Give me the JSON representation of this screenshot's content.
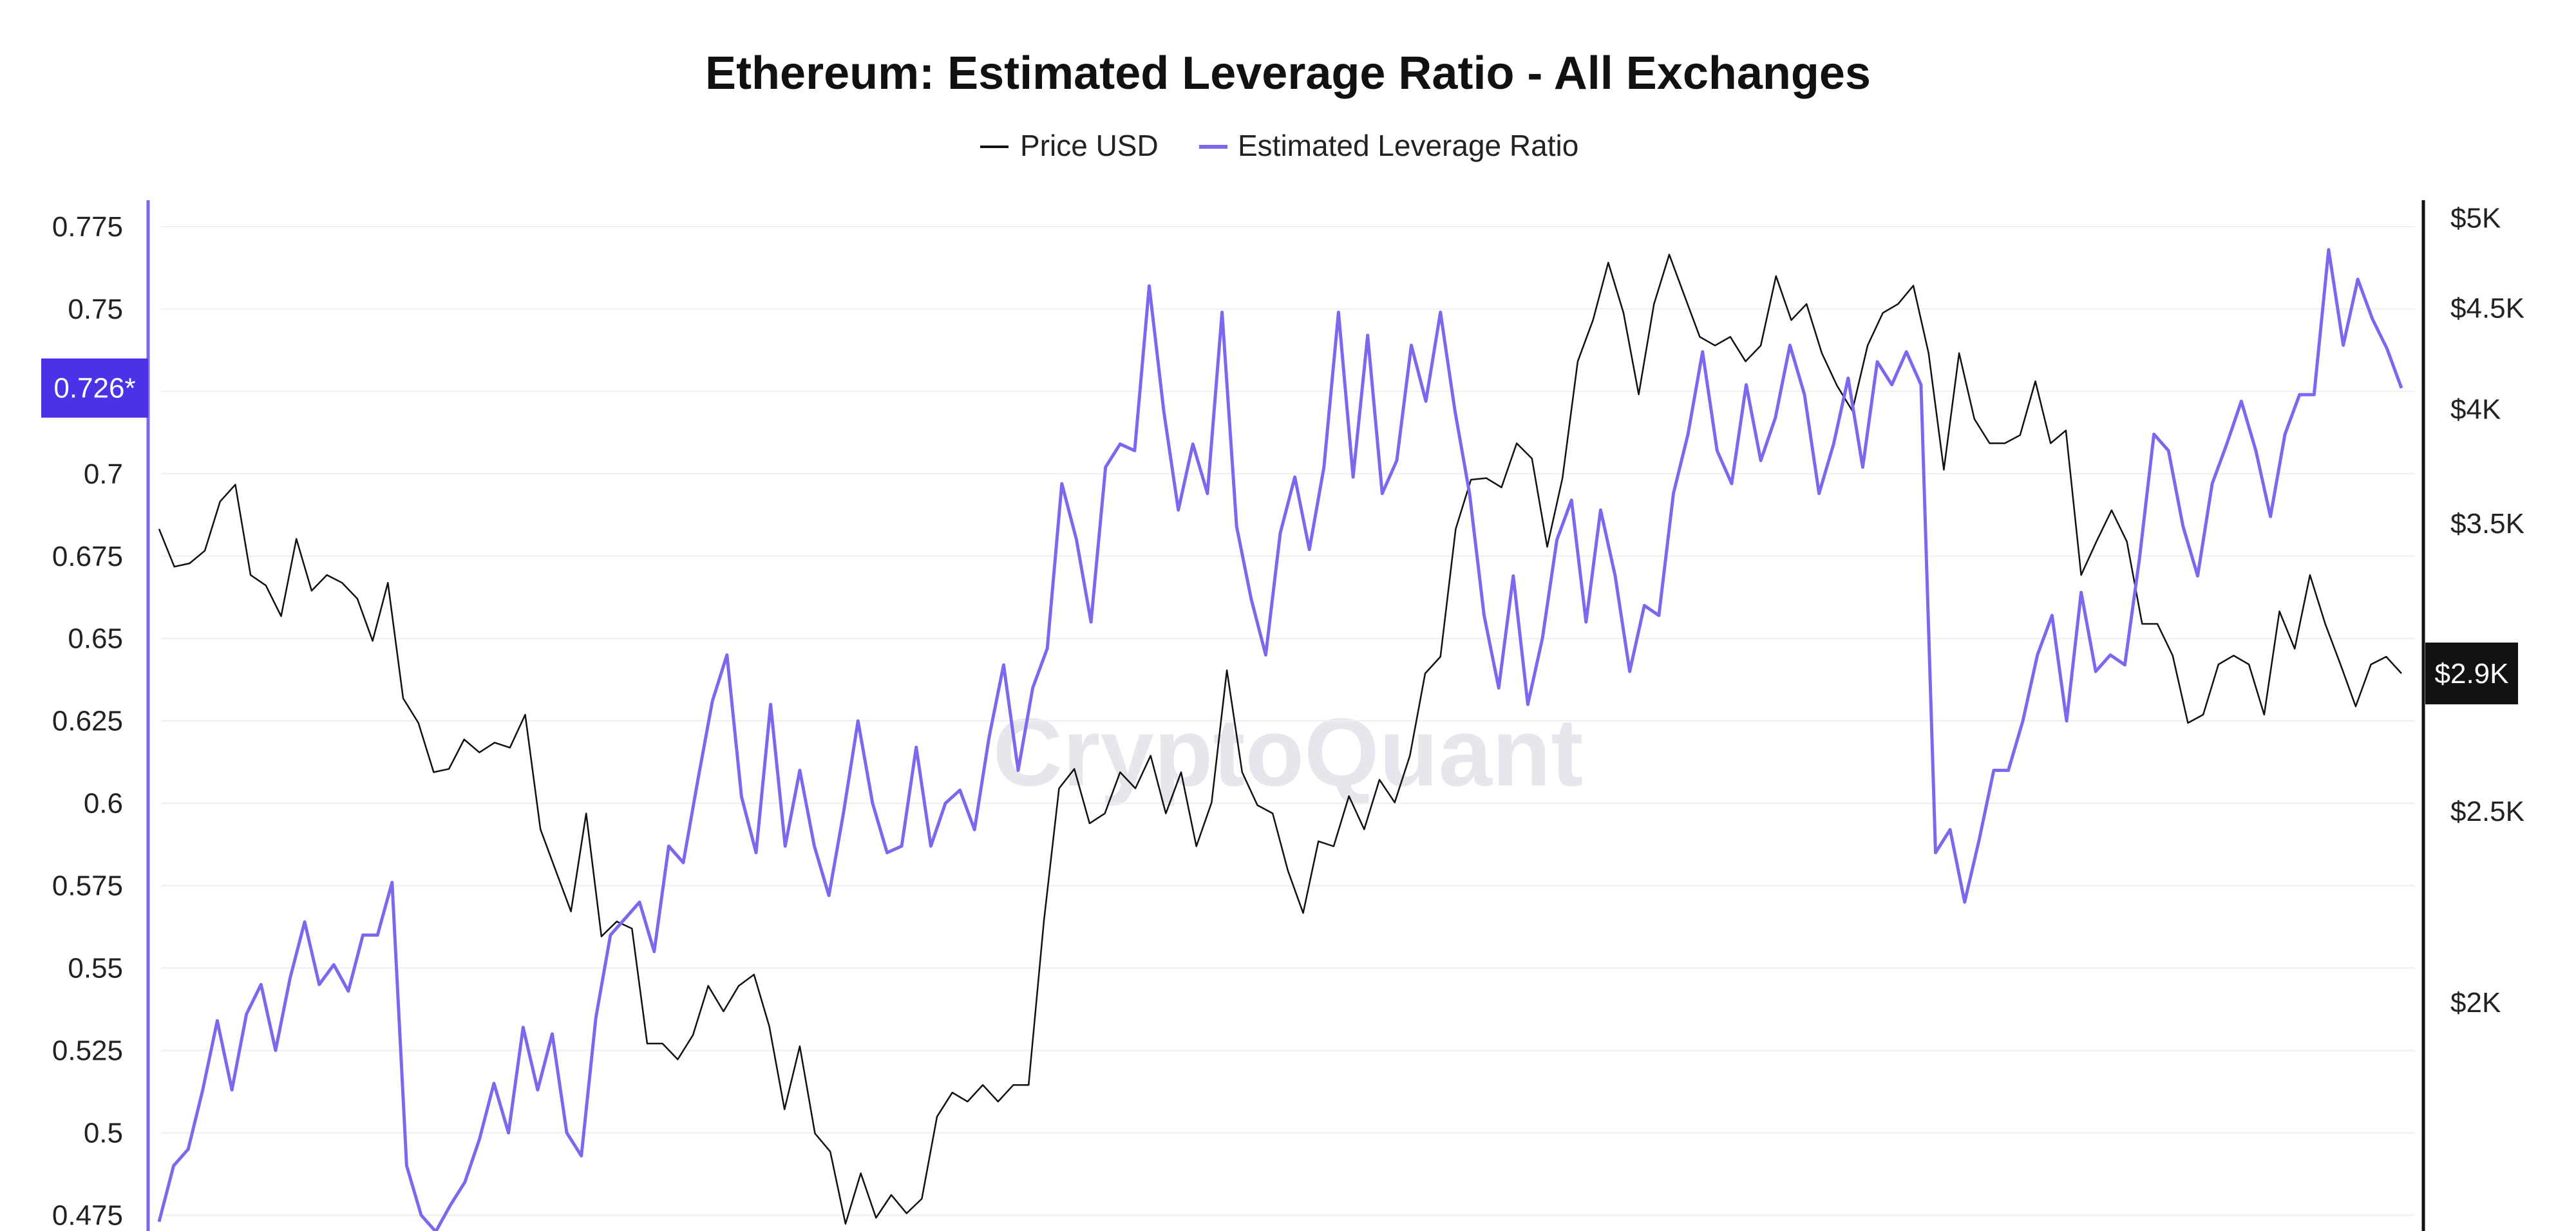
{
  "chart_data": {
    "type": "line",
    "title": "Ethereum: Estimated Leverage Ratio - All Exchanges",
    "watermark": "CryptoQuant",
    "legend_position": "top-center",
    "grid": true,
    "left_axis": {
      "ticks": [
        "0.775",
        "0.75",
        "0.725",
        "0.7",
        "0.675",
        "0.65",
        "0.625",
        "0.6",
        "0.575",
        "0.55",
        "0.525",
        "0.5",
        "0.475"
      ],
      "tick_labels": [
        "0.775",
        "0.75",
        "",
        "0.7",
        "0.675",
        "0.65",
        "0.625",
        "0.6",
        "0.575",
        "0.55",
        "0.525",
        "0.5",
        "0.475"
      ],
      "range": [
        0.47,
        0.783
      ],
      "current_label": "0.726*",
      "current_value": 0.726,
      "color": "#7b68ee",
      "highlight_color": "#4b32e6"
    },
    "right_axis": {
      "scale": "log",
      "ticks": [
        5000,
        4500,
        4000,
        3500,
        2500,
        2000
      ],
      "tick_labels": [
        "$5K",
        "$4.5K",
        "$4K",
        "$3.5K",
        "$2.5K",
        "$2K"
      ],
      "range": [
        1530,
        5105
      ],
      "current_label": "$2.9K",
      "current_value": 2937,
      "color": "#111111"
    },
    "series": [
      {
        "name": "Price USD",
        "axis": "right",
        "color": "#111111",
        "values": [
          3477,
          3327,
          3340,
          3390,
          3590,
          3662,
          3295,
          3255,
          3140,
          3437,
          3235,
          3295,
          3265,
          3205,
          3051,
          3265,
          2853,
          2772,
          2617,
          2627,
          2719,
          2678,
          2709,
          2693,
          2799,
          2448,
          2333,
          2224,
          2494,
          2160,
          2198,
          2180,
          1906,
          1906,
          1871,
          1925,
          2039,
          1979,
          2039,
          2066,
          1945,
          1765,
          1900,
          1716,
          1680,
          1544,
          1638,
          1555,
          1597,
          1563,
          1590,
          1750,
          1800,
          1781,
          1816,
          1781,
          1816,
          1816,
          2198,
          2568,
          2627,
          2465,
          2494,
          2617,
          2568,
          2668,
          2494,
          2617,
          2400,
          2526,
          2948,
          2617,
          2518,
          2494,
          2333,
          2220,
          2414,
          2400,
          2545,
          2448,
          2594,
          2526,
          2668,
          2937,
          2995,
          3477,
          3683,
          3690,
          3650,
          3843,
          3775,
          3405,
          3690,
          4229,
          4438,
          4746,
          4475,
          4069,
          4522,
          4791,
          4565,
          4352,
          4308,
          4352,
          4229,
          4308,
          4672,
          4438,
          4522,
          4270,
          4110,
          3992,
          4308,
          4475,
          4522,
          4620,
          4270,
          3726,
          4270,
          3954,
          3843,
          3843,
          3880,
          4132,
          3843,
          3901,
          3295,
          3426,
          3554,
          3426,
          3112,
          3112,
          2999,
          2772,
          2799,
          2968,
          2999,
          2968,
          2799,
          3158,
          3023,
          3295,
          3112,
          2968,
          2826,
          2968,
          2995,
          2937
        ]
      },
      {
        "name": "Estimated Leverage Ratio",
        "axis": "left",
        "color": "#7b68ee",
        "values": [
          0.473,
          0.49,
          0.495,
          0.513,
          0.534,
          0.513,
          0.536,
          0.545,
          0.525,
          0.547,
          0.564,
          0.545,
          0.551,
          0.543,
          0.56,
          0.56,
          0.576,
          0.49,
          0.475,
          0.47,
          0.478,
          0.485,
          0.498,
          0.515,
          0.5,
          0.532,
          0.513,
          0.53,
          0.5,
          0.493,
          0.535,
          0.56,
          0.565,
          0.57,
          0.555,
          0.587,
          0.582,
          0.607,
          0.631,
          0.645,
          0.602,
          0.585,
          0.63,
          0.587,
          0.61,
          0.587,
          0.572,
          0.597,
          0.625,
          0.6,
          0.585,
          0.587,
          0.617,
          0.587,
          0.6,
          0.604,
          0.592,
          0.62,
          0.642,
          0.61,
          0.635,
          0.647,
          0.697,
          0.68,
          0.655,
          0.702,
          0.709,
          0.707,
          0.757,
          0.719,
          0.689,
          0.709,
          0.694,
          0.749,
          0.684,
          0.662,
          0.645,
          0.682,
          0.699,
          0.677,
          0.702,
          0.749,
          0.699,
          0.742,
          0.694,
          0.704,
          0.739,
          0.722,
          0.749,
          0.719,
          0.694,
          0.657,
          0.635,
          0.669,
          0.63,
          0.65,
          0.68,
          0.692,
          0.655,
          0.689,
          0.669,
          0.64,
          0.66,
          0.657,
          0.694,
          0.712,
          0.737,
          0.707,
          0.697,
          0.727,
          0.704,
          0.717,
          0.739,
          0.724,
          0.694,
          0.709,
          0.729,
          0.702,
          0.734,
          0.727,
          0.737,
          0.727,
          0.585,
          0.592,
          0.57,
          0.589,
          0.61,
          0.61,
          0.625,
          0.645,
          0.657,
          0.625,
          0.664,
          0.64,
          0.645,
          0.642,
          0.674,
          0.712,
          0.707,
          0.684,
          0.669,
          0.697,
          0.709,
          0.722,
          0.707,
          0.687,
          0.712,
          0.724,
          0.724,
          0.768,
          0.739,
          0.759,
          0.747,
          0.738,
          0.726
        ]
      }
    ]
  }
}
